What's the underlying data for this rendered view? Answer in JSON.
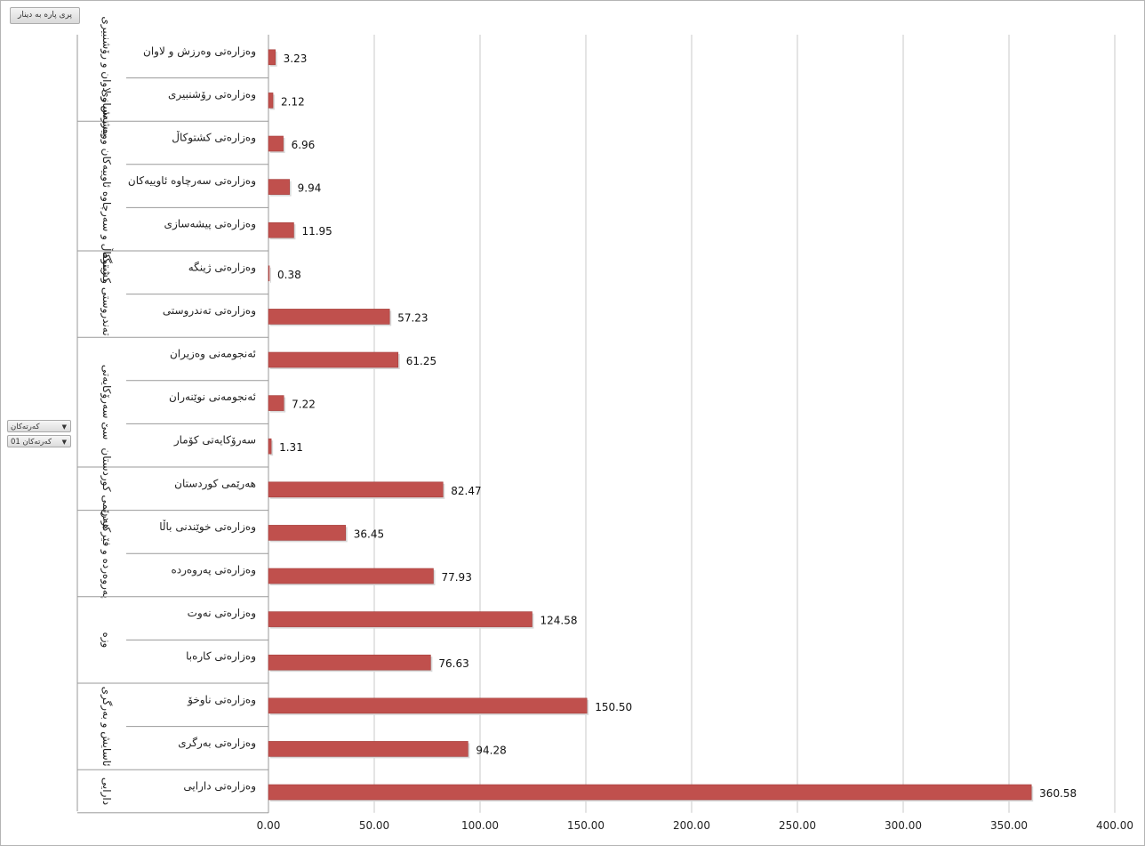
{
  "toolbar": {
    "button_label": "پری پارە بە دینار"
  },
  "filters": [
    {
      "label": "کەرتەکان",
      "icon": "caret-down-icon"
    },
    {
      "label": "کەرتەکان 01",
      "icon": "caret-down-icon"
    }
  ],
  "chart_data": {
    "type": "bar",
    "orientation": "horizontal",
    "bar_color": "#c0504d",
    "xlim": [
      0,
      400
    ],
    "x_ticks": [
      "0.00",
      "50.00",
      "100.00",
      "150.00",
      "200.00",
      "250.00",
      "300.00",
      "350.00",
      "400.00"
    ],
    "grid": "vertical",
    "groups": [
      {
        "name": "وەرزش و لاوان و رۆشنبیری",
        "items": [
          {
            "label": "وەزارەتی وەرزش و لاوان",
            "value": 3.23
          },
          {
            "label": "وەزارەتی رۆشنبیری",
            "value": 2.12
          }
        ]
      },
      {
        "name": "کشتوکاڵ و سەرچاوە ئاوییەکان و پیشەسازی",
        "items": [
          {
            "label": "وەزارەتی کشتوکاڵ",
            "value": 6.96
          },
          {
            "label": "وەزارەتی سەرچاوە ئاوییەکان",
            "value": 9.94
          },
          {
            "label": "وەزارەتی پیشەسازی",
            "value": 11.95
          }
        ]
      },
      {
        "name": "تەندروستی و ژینگە",
        "items": [
          {
            "label": "وەزارەتی ژینگە",
            "value": 0.38
          },
          {
            "label": "وەزارەتی تەندروستی",
            "value": 57.23
          }
        ]
      },
      {
        "name": "سێ سەرۆکایەتی",
        "items": [
          {
            "label": "ئەنجومەنی وەزیران",
            "value": 61.25
          },
          {
            "label": "ئەنجومەنی نوێنەران",
            "value": 7.22
          },
          {
            "label": "سەرۆکایەتی کۆمار",
            "value": 1.31
          }
        ]
      },
      {
        "name": "هەرێمی کوردستان",
        "items": [
          {
            "label": "هەرێمی کوردستان",
            "value": 82.47
          }
        ]
      },
      {
        "name": "پەروەردە و فێرکردن",
        "items": [
          {
            "label": "وەزارەتی خوێندنی باڵا",
            "value": 36.45
          },
          {
            "label": "وەزارەتی پەروەردە",
            "value": 77.93
          }
        ]
      },
      {
        "name": "وزە",
        "items": [
          {
            "label": "وەزارەتی نەوت",
            "value": 124.58
          },
          {
            "label": "وەزارەتی کارەبا",
            "value": 76.63
          }
        ]
      },
      {
        "name": "ئاسایش و بەرگری",
        "items": [
          {
            "label": "وەزارەتی ناوخۆ",
            "value": 150.5
          },
          {
            "label": "وەزارەتی بەرگری",
            "value": 94.28
          }
        ]
      },
      {
        "name": "دارایی",
        "items": [
          {
            "label": "وەزارەتی دارایی",
            "value": 360.58
          }
        ]
      }
    ]
  }
}
